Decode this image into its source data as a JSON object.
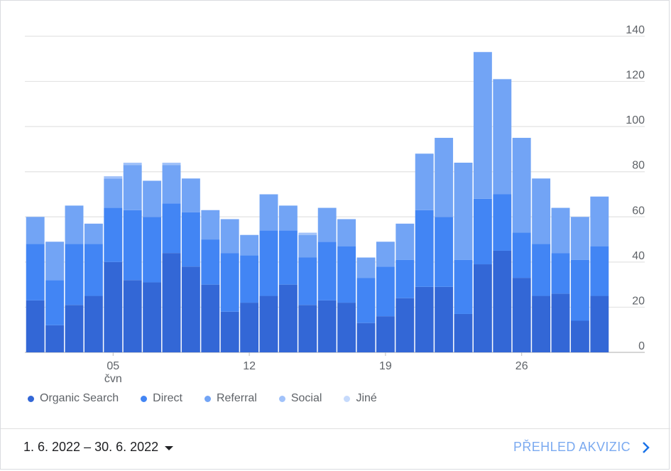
{
  "chart_data": {
    "type": "bar",
    "stacked": true,
    "x": [
      1,
      2,
      3,
      4,
      5,
      6,
      7,
      8,
      9,
      10,
      11,
      12,
      13,
      14,
      15,
      16,
      17,
      18,
      19,
      20,
      21,
      22,
      23,
      24,
      25,
      26,
      27,
      28,
      29,
      30
    ],
    "x_ticks": [
      {
        "day": 5,
        "label": "05",
        "sublabel": "čvn"
      },
      {
        "day": 12,
        "label": "12",
        "sublabel": ""
      },
      {
        "day": 19,
        "label": "19",
        "sublabel": ""
      },
      {
        "day": 26,
        "label": "26",
        "sublabel": ""
      }
    ],
    "y_ticks": [
      0,
      20,
      40,
      60,
      80,
      100,
      120,
      140
    ],
    "ylim": [
      0,
      140
    ],
    "y_axis_side": "right",
    "grid": true,
    "legend_position": "bottom",
    "series": [
      {
        "name": "Organic Search",
        "color": "#3367d6",
        "values": [
          23,
          12,
          21,
          25,
          40,
          32,
          31,
          44,
          38,
          30,
          18,
          22,
          25,
          30,
          21,
          23,
          22,
          13,
          16,
          24,
          29,
          29,
          17,
          39,
          45,
          33,
          25,
          26,
          14,
          25
        ]
      },
      {
        "name": "Direct",
        "color": "#4285f4",
        "values": [
          25,
          20,
          27,
          23,
          24,
          31,
          29,
          22,
          24,
          20,
          26,
          21,
          29,
          24,
          21,
          26,
          25,
          20,
          22,
          17,
          34,
          31,
          24,
          29,
          25,
          20,
          23,
          18,
          27,
          22
        ]
      },
      {
        "name": "Referral",
        "color": "#72a4f5",
        "values": [
          12,
          17,
          17,
          9,
          13,
          20,
          16,
          17,
          15,
          13,
          15,
          9,
          16,
          11,
          10,
          15,
          12,
          9,
          11,
          16,
          25,
          35,
          43,
          65,
          51,
          42,
          29,
          20,
          19,
          22
        ]
      },
      {
        "name": "Social",
        "color": "#a1c2fa",
        "values": [
          0,
          0,
          0,
          0,
          1,
          1,
          0,
          1,
          0,
          0,
          0,
          0,
          0,
          0,
          1,
          0,
          0,
          0,
          0,
          0,
          0,
          0,
          0,
          0,
          0,
          0,
          0,
          0,
          0,
          0
        ]
      },
      {
        "name": "Jiné",
        "color": "#c6dafc",
        "values": [
          0,
          0,
          0,
          0,
          0,
          0,
          0,
          0,
          0,
          0,
          0,
          0,
          0,
          0,
          0,
          0,
          0,
          0,
          0,
          0,
          0,
          0,
          0,
          0,
          0,
          0,
          0,
          0,
          0,
          0
        ]
      }
    ]
  },
  "footer": {
    "date_range": "1. 6. 2022 – 30. 6. 2022",
    "report_link": "PŘEHLED AKVIZIC"
  }
}
